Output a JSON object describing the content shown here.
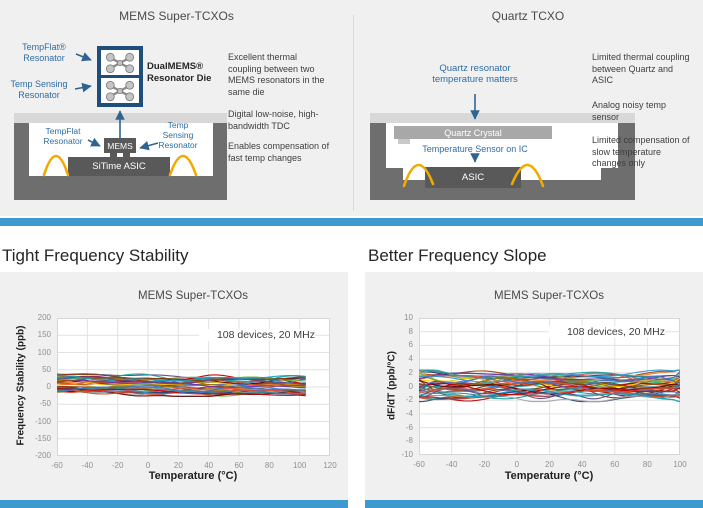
{
  "colors": {
    "accent_bar": "#3D9ACF",
    "panel_bg": "#F0F0F1",
    "package_dark": "#6E6E6E",
    "package_lid": "#D8D8D8",
    "chip_dark": "#595959",
    "crystal_gray": "#A8A8A8",
    "die_border_navy": "#1E4E79",
    "wire_gold": "#F2A900",
    "label_blue": "#2E6DA4",
    "grid": "#E2E2E2",
    "plot_border": "#D7D7D7"
  },
  "top": {
    "left": {
      "title": "MEMS Super-TCXOs",
      "tempflat_label": "TempFlat®\nResonator",
      "temp_sensing_label": "Temp Sensing\nResonator",
      "die_label": "DualMEMS®\nResonator Die",
      "pkg_tempflat_label": "TempFlat\nResonator",
      "pkg_temp_sensing_label": "Temp\nSensing\nResonator",
      "mems_chip_label": "MEMS",
      "asic_chip_label": "SiTime ASIC",
      "bullets": [
        "Excellent thermal coupling between two MEMS resonators in the same die",
        "Digital low-noise, high-bandwidth TDC",
        "Enables compensation of fast temp changes"
      ]
    },
    "right": {
      "title": "Quartz TCXO",
      "callout": "Quartz resonator\ntemperature matters",
      "crystal_label": "Quartz Crystal",
      "sensor_label": "Temperature Sensor on IC",
      "asic_chip_label": "ASIC",
      "bullets": [
        "Limited thermal coupling between Quartz and ASIC",
        "Analog noisy temp sensor",
        "Limited compensation of slow temperature changes only"
      ]
    }
  },
  "sections": {
    "left_heading": "Tight Frequency Stability",
    "right_heading": "Better Frequency Slope"
  },
  "chart_data": [
    {
      "type": "line",
      "title": "MEMS Super-TCXOs",
      "annotation": "108 devices, 20 MHz",
      "xlabel": "Temperature (°C)",
      "ylabel": "Frequency Stability (ppb)",
      "xlim": [
        -60,
        120
      ],
      "ylim": [
        -200,
        200
      ],
      "xticks": [
        -60,
        -40,
        -20,
        0,
        20,
        40,
        60,
        80,
        100,
        120
      ],
      "yticks": [
        200,
        150,
        100,
        50,
        0,
        -50,
        -100,
        -150,
        -200
      ],
      "grid": true,
      "legend_position": "none",
      "n_series": 108,
      "series_summary": "108 overlaid device curves forming a flat band of frequency stability within about -27 to +46 ppb from -60 to 105 C",
      "series_x_range": [
        -60,
        104
      ],
      "band_upper": 46,
      "band_lower": -27,
      "trend": -0.05,
      "wiggle_amp": 9,
      "edge_boost": false,
      "end_spike": 0,
      "draw_series": 42,
      "palette": [
        "#C00000",
        "#4472C4",
        "#ED7D31",
        "#FFC000",
        "#5B9BD5",
        "#70AD47",
        "#7030A0",
        "#1F9E9E",
        "#9E480E",
        "#264478",
        "#843C0C",
        "#2E9BD6",
        "#A5A5A5",
        "#997300",
        "#630000",
        "#D24726",
        "#31859B",
        "#604A7B",
        "#E84C3D",
        "#17A2B8"
      ]
    },
    {
      "type": "line",
      "title": "MEMS Super-TCXOs",
      "annotation": "108 devices, 20 MHz",
      "xlabel": "Temperature (°C)",
      "ylabel": "dF/dT (ppb/°C)",
      "xlim": [
        -60,
        100
      ],
      "ylim": [
        -10,
        10
      ],
      "xticks": [
        -60,
        -40,
        -20,
        0,
        20,
        40,
        60,
        80,
        100
      ],
      "yticks": [
        10,
        8,
        6,
        4,
        2,
        0,
        -2,
        -4,
        -6,
        -8,
        -10
      ],
      "grid": true,
      "legend_position": "none",
      "n_series": 108,
      "series_summary": "108 overlaid device slope curves within about -2.2 to +2.4 ppb per C, wider spread below -40 C and small spike near 100 C",
      "series_x_range": [
        -60,
        101
      ],
      "band_upper": 2.4,
      "band_lower": -2.2,
      "trend": 0,
      "wiggle_amp": 0.8,
      "edge_boost": true,
      "end_spike": 2.0,
      "draw_series": 42,
      "palette": [
        "#C00000",
        "#4472C4",
        "#ED7D31",
        "#FFC000",
        "#5B9BD5",
        "#70AD47",
        "#7030A0",
        "#1F9E9E",
        "#9E480E",
        "#264478",
        "#843C0C",
        "#2E9BD6",
        "#A5A5A5",
        "#997300",
        "#630000",
        "#D24726",
        "#31859B",
        "#604A7B",
        "#E84C3D",
        "#17A2B8"
      ]
    }
  ]
}
